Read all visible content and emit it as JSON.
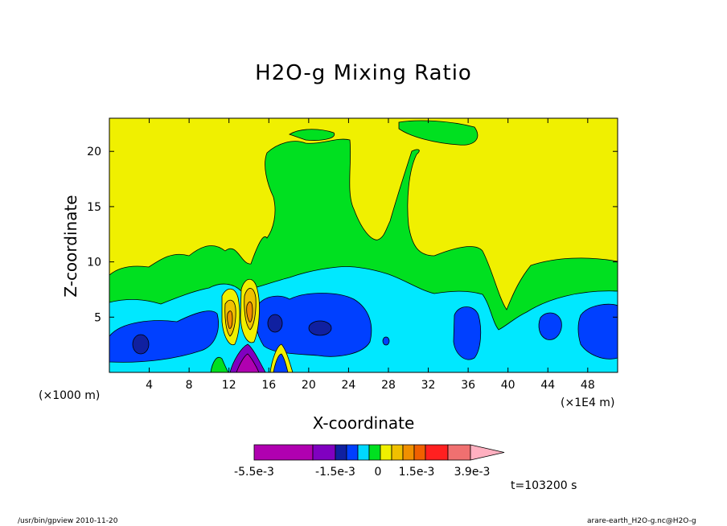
{
  "chart_data": {
    "type": "heatmap",
    "title": "H2O-g Mixing Ratio",
    "xlabel": "X-coordinate",
    "ylabel": "Z-coordinate",
    "x_unit_left": "(×1000 m)",
    "x_unit_right": "(×1E4 m)",
    "xlim": [
      0,
      51
    ],
    "ylim": [
      0,
      23
    ],
    "x_ticks": [
      4,
      8,
      12,
      16,
      20,
      24,
      28,
      32,
      36,
      40,
      44,
      48
    ],
    "y_ticks": [
      5,
      10,
      15,
      20
    ],
    "colorbar": {
      "colors": [
        "#b000b0",
        "#8000c0",
        "#1020a0",
        "#0040ff",
        "#00d8ff",
        "#00e020",
        "#f0f000",
        "#f0c000",
        "#f09000",
        "#f06000",
        "#ff2020",
        "#f07070",
        "#ffb0c0"
      ],
      "labels": [
        "-5.5e-3",
        "-1.5e-3",
        "0",
        "1.5e-3",
        "3.9e-3"
      ]
    },
    "time_label": "t=103200 s",
    "regions": [
      {
        "name": "upper-background",
        "level": "yellow",
        "z_range": [
          9,
          23
        ]
      },
      {
        "name": "mid-band",
        "level": "green",
        "z_range": [
          6,
          9
        ]
      },
      {
        "name": "lower-band",
        "level": "cyan",
        "z_range": [
          2,
          6
        ]
      },
      {
        "name": "low-cores",
        "level": "blue",
        "centers_x": [
          3,
          10,
          18,
          22,
          35.5,
          44,
          48.5
        ]
      }
    ]
  },
  "footer": {
    "left": "/usr/bin/gpview  2010-11-20",
    "right": "arare-earth_H2O-g.nc@H2O-g"
  }
}
